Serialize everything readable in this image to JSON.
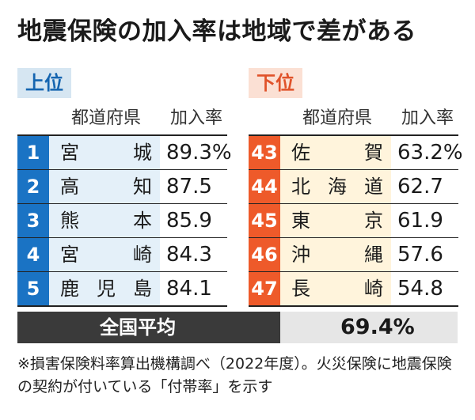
{
  "title": "地震保険の加入率は地域で差がある",
  "top": {
    "label": "上位",
    "header_pref": "都道府県",
    "header_rate": "加入率",
    "rows": [
      {
        "rank": "1",
        "pref": "宮城",
        "rate": "89.3%"
      },
      {
        "rank": "2",
        "pref": "高知",
        "rate": "87.5"
      },
      {
        "rank": "3",
        "pref": "熊本",
        "rate": "85.9"
      },
      {
        "rank": "4",
        "pref": "宮崎",
        "rate": "84.3"
      },
      {
        "rank": "5",
        "pref": "鹿児島",
        "rate": "84.1"
      }
    ]
  },
  "bottom": {
    "label": "下位",
    "header_pref": "都道府県",
    "header_rate": "加入率",
    "rows": [
      {
        "rank": "43",
        "pref": "佐賀",
        "rate": "63.2%"
      },
      {
        "rank": "44",
        "pref": "北海道",
        "rate": "62.7"
      },
      {
        "rank": "45",
        "pref": "東京",
        "rate": "61.9"
      },
      {
        "rank": "46",
        "pref": "沖縄",
        "rate": "57.6"
      },
      {
        "rank": "47",
        "pref": "長崎",
        "rate": "54.8"
      }
    ]
  },
  "average": {
    "label": "全国平均",
    "value": "69.4%"
  },
  "note": "※損害保険料率算出機構調べ（2022年度）。火災保険に地震保険の契約が付いている「付帯率」を示す",
  "colors": {
    "top_accent": "#1a73c4",
    "bottom_accent": "#ee5a2a",
    "average_band": "#3a3a3a"
  }
}
